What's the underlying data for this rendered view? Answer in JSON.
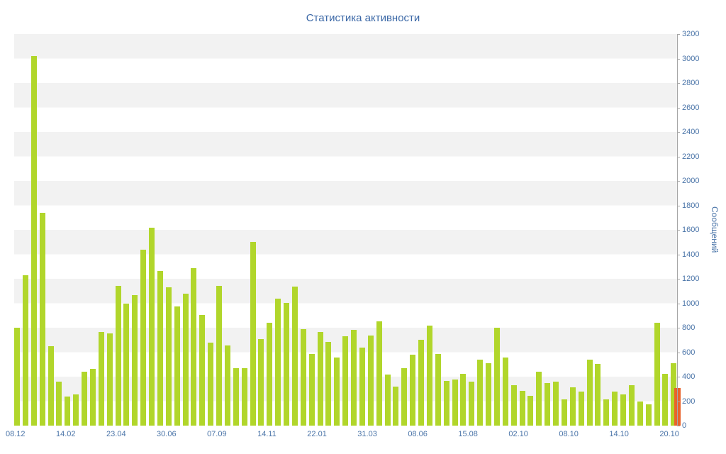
{
  "title": "Статистика активности",
  "colors": {
    "bar": "#b1d62b",
    "bar_highlight": "#e8632b",
    "title_text": "#3a67a6",
    "axis_text": "#4a74a8",
    "band": "#f2f2f2",
    "axis_line": "#a6a6a6"
  },
  "chart_data": {
    "type": "bar",
    "title": "Статистика активности",
    "xlabel": "",
    "ylabel": "Сообщений",
    "ylim": [
      0,
      3200
    ],
    "grid": "horizontal-bands",
    "legend": "none",
    "y_ticks": [
      0,
      200,
      400,
      600,
      800,
      1000,
      1200,
      1400,
      1600,
      1800,
      2000,
      2200,
      2400,
      2600,
      2800,
      3000,
      3200
    ],
    "x_tick_labels": [
      "08.12",
      "14.02",
      "23.04",
      "30.06",
      "07.09",
      "14.11",
      "22.01",
      "31.03",
      "08.06",
      "15.08",
      "02.10",
      "08.10",
      "14.10",
      "20.10"
    ],
    "series": [
      {
        "name": "Сообщений",
        "color": "#b1d62b",
        "values": [
          800,
          1230,
          3020,
          1740,
          650,
          360,
          240,
          255,
          440,
          465,
          765,
          755,
          1140,
          1000,
          1065,
          1440,
          1620,
          1265,
          1130,
          975,
          1080,
          1285,
          905,
          680,
          1140,
          655,
          470,
          470,
          1500,
          705,
          840,
          1040,
          1005,
          1135,
          790,
          585,
          765,
          685,
          555,
          730,
          785,
          640,
          735,
          850,
          420,
          320,
          470,
          580,
          700,
          820,
          585,
          365,
          375,
          425,
          360,
          540,
          510,
          800,
          555,
          330,
          285,
          245,
          440,
          350,
          360,
          215,
          315,
          280,
          540,
          505,
          215,
          280,
          255,
          330,
          195,
          175,
          840,
          425,
          510
        ]
      }
    ],
    "highlight": {
      "note": "rightmost current-period bar drawn in orange over the axis edge",
      "value": 310,
      "color": "#e8632b"
    }
  }
}
